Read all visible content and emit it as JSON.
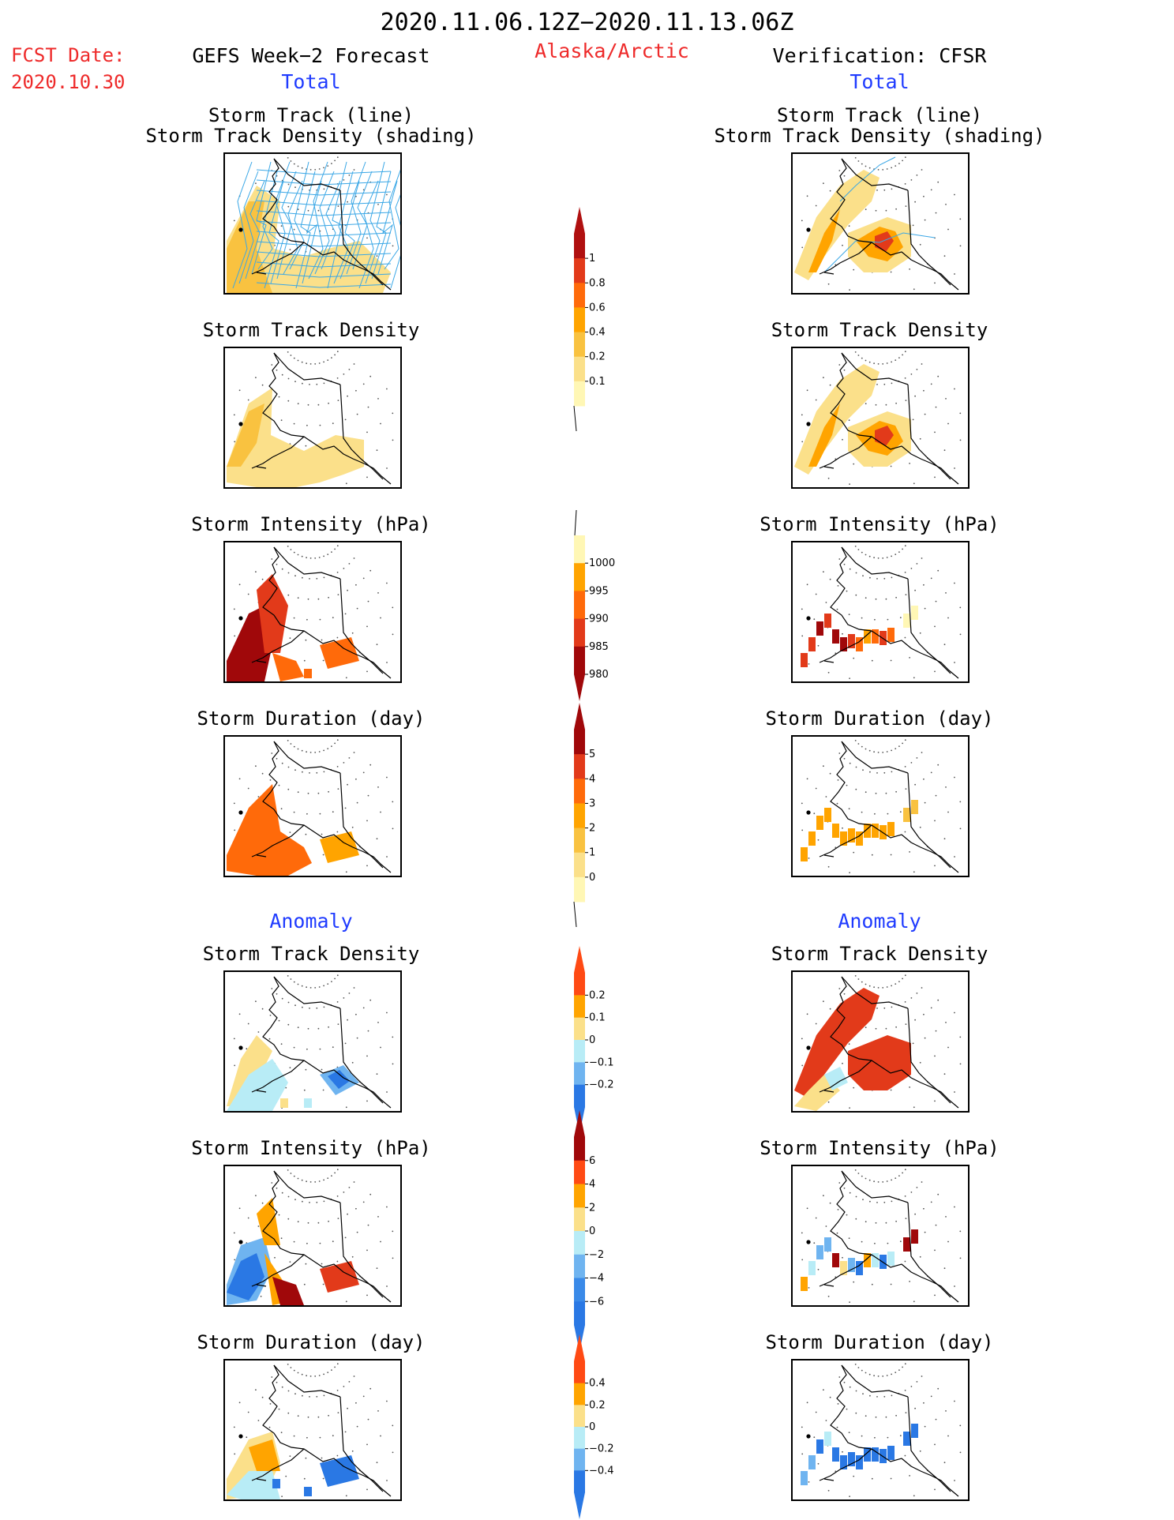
{
  "header": {
    "title": "2020.11.06.12Z−2020.11.13.06Z",
    "fcst_label": "FCST Date:",
    "fcst_date": "2020.10.30",
    "left_header": "GEFS Week−2 Forecast",
    "region": "Alaska/Arctic",
    "right_header": "Verification: CFSR",
    "left_total": "Total",
    "right_total": "Total",
    "left_anomaly": "Anomaly",
    "right_anomaly": "Anomaly"
  },
  "panels": {
    "left": [
      {
        "title1": "Storm Track (line)",
        "title2": "Storm Track Density (shading)"
      },
      {
        "title1": "Storm Track Density"
      },
      {
        "title1": "Storm Intensity (hPa)"
      },
      {
        "title1": "Storm Duration (day)"
      },
      {
        "title1": "Storm Track Density"
      },
      {
        "title1": "Storm Intensity (hPa)"
      },
      {
        "title1": "Storm Duration (day)"
      }
    ],
    "right": [
      {
        "title1": "Storm Track (line)",
        "title2": "Storm Track Density (shading)"
      },
      {
        "title1": "Storm Track Density"
      },
      {
        "title1": "Storm Intensity (hPa)"
      },
      {
        "title1": "Storm Duration (day)"
      },
      {
        "title1": "Storm Track Density"
      },
      {
        "title1": "Storm Intensity (hPa)"
      },
      {
        "title1": "Storm Duration (day)"
      }
    ]
  },
  "chart_data": [
    {
      "type": "heatmap",
      "name": "density_total",
      "colorbar_labels": [
        "1",
        "0.8",
        "0.6",
        "0.4",
        "0.2",
        "0.1"
      ],
      "colors": [
        "#b01010",
        "#e23a1a",
        "#ff6a0a",
        "#ffa400",
        "#f9c240",
        "#fbe08a",
        "#fff7b5"
      ]
    },
    {
      "type": "heatmap",
      "name": "intensity_total",
      "colorbar_labels": [
        "1000",
        "995",
        "990",
        "985",
        "980"
      ],
      "colors": [
        "#fff7b5",
        "#ffa400",
        "#ff6a0a",
        "#e23a1a",
        "#a0080a"
      ]
    },
    {
      "type": "heatmap",
      "name": "duration_total",
      "colorbar_labels": [
        "5",
        "4",
        "3",
        "2",
        "1",
        "0"
      ],
      "colors": [
        "#a0080a",
        "#e23a1a",
        "#ff6a0a",
        "#ffa400",
        "#f9c240",
        "#fbe08a",
        "#fff7b5"
      ]
    },
    {
      "type": "heatmap",
      "name": "density_anomaly",
      "colorbar_labels": [
        "0.2",
        "0.1",
        "0",
        "−0.1",
        "−0.2"
      ],
      "colors": [
        "#ff4a14",
        "#ffa400",
        "#fbe08a",
        "#b8ecf6",
        "#6fb4f0",
        "#2a78e4"
      ]
    },
    {
      "type": "heatmap",
      "name": "intensity_anomaly",
      "colorbar_labels": [
        "6",
        "4",
        "2",
        "0",
        "−2",
        "−4",
        "−6"
      ],
      "colors": [
        "#a0080a",
        "#ff4a14",
        "#ffa400",
        "#fbe08a",
        "#b8ecf6",
        "#6fb4f0",
        "#3a8ae8",
        "#2a78e4"
      ]
    },
    {
      "type": "heatmap",
      "name": "duration_anomaly",
      "colorbar_labels": [
        "0.4",
        "0.2",
        "0",
        "−0.2",
        "−0.4"
      ],
      "colors": [
        "#ff4a14",
        "#ffa400",
        "#fbe08a",
        "#b8ecf6",
        "#6fb4f0",
        "#2a78e4"
      ]
    }
  ]
}
